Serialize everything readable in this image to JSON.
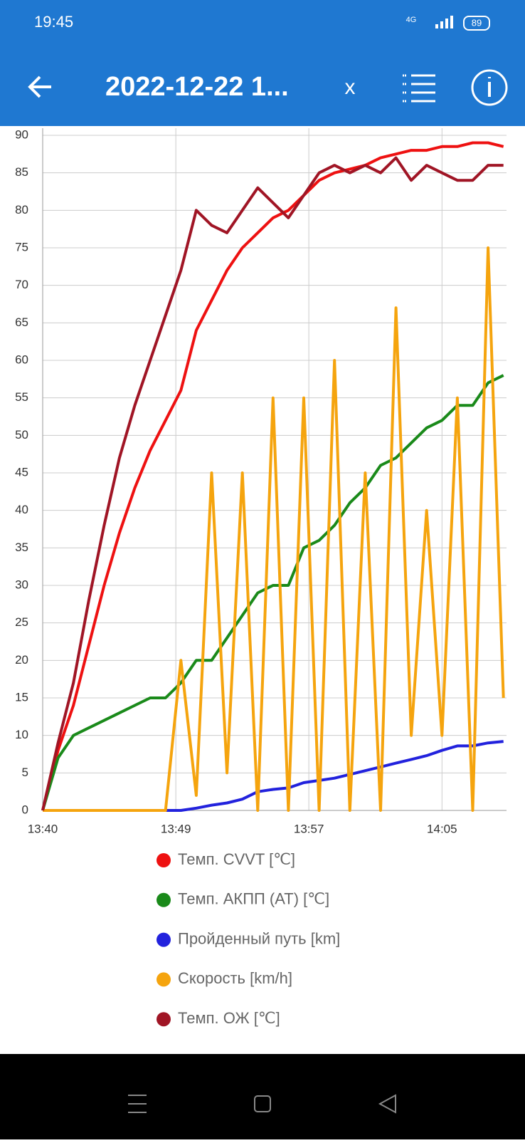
{
  "status_bar": {
    "time": "19:45",
    "network": "4G",
    "battery": "89"
  },
  "app_bar": {
    "title": "2022-12-22 1...",
    "close": "x"
  },
  "chart_data": {
    "type": "line",
    "x": [
      0,
      1,
      2,
      3,
      4,
      5,
      6,
      7,
      8,
      9,
      10,
      11,
      12,
      13,
      14,
      15,
      16,
      17,
      18,
      19,
      20,
      21,
      22,
      23,
      24,
      25,
      26,
      27,
      28,
      29,
      30
    ],
    "xlim": [
      0,
      30.2
    ],
    "xticks": [
      {
        "value": 0,
        "label": "13:40"
      },
      {
        "value": 8.67,
        "label": "13:49"
      },
      {
        "value": 17.33,
        "label": "13:57"
      },
      {
        "value": 26,
        "label": "14:05"
      }
    ],
    "ylim": [
      0,
      90
    ],
    "yticks": [
      0,
      5,
      10,
      15,
      20,
      25,
      30,
      35,
      40,
      45,
      50,
      55,
      60,
      65,
      70,
      75,
      80,
      85,
      90
    ],
    "grid": true,
    "series": [
      {
        "name": "Темп. CVVT [℃]",
        "color": "#ee1111",
        "values": [
          0,
          8,
          14,
          22,
          30,
          37,
          43,
          48,
          52,
          56,
          64,
          68,
          72,
          75,
          77,
          79,
          80,
          82,
          84,
          85,
          85.5,
          86,
          87,
          87.5,
          88,
          88,
          88.5,
          88.5,
          89,
          89,
          88.5
        ]
      },
      {
        "name": "Темп. АКПП (AT) [℃]",
        "color": "#1a8a1a",
        "values": [
          0,
          7,
          10,
          11,
          12,
          13,
          14,
          15,
          15,
          17,
          20,
          20,
          23,
          26,
          29,
          30,
          30,
          35,
          36,
          38,
          41,
          43,
          46,
          47,
          49,
          51,
          52,
          54,
          54,
          57,
          58
        ]
      },
      {
        "name": "Пройденный путь [km]",
        "color": "#2222dd",
        "values": [
          0,
          0,
          0,
          0,
          0,
          0,
          0,
          0,
          0,
          0,
          0.3,
          0.7,
          1,
          1.5,
          2.5,
          2.8,
          3,
          3.7,
          4,
          4.3,
          4.8,
          5.3,
          5.8,
          6.3,
          6.8,
          7.3,
          8,
          8.6,
          8.6,
          9,
          9.2
        ]
      },
      {
        "name": "Скорость [km/h]",
        "color": "#f5a40e",
        "values": [
          0,
          0,
          0,
          0,
          0,
          0,
          0,
          0,
          0,
          20,
          2,
          45,
          5,
          45,
          0,
          55,
          0,
          55,
          0,
          60,
          0,
          45,
          0,
          67,
          10,
          40,
          10,
          55,
          0,
          75,
          15
        ]
      },
      {
        "name": "Темп. ОЖ [℃]",
        "color": "#a01525",
        "values": [
          0,
          9,
          17,
          28,
          38,
          47,
          54,
          60,
          66,
          72,
          80,
          78,
          77,
          80,
          83,
          81,
          79,
          82,
          85,
          86,
          85,
          86,
          85,
          87,
          84,
          86,
          85,
          84,
          84,
          86,
          86
        ]
      }
    ]
  }
}
